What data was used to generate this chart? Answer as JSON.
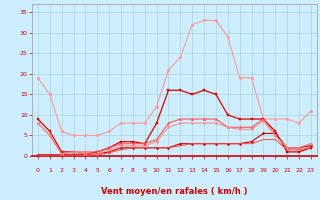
{
  "background_color": "#cceeff",
  "grid_line_color": "#aacccc",
  "xlabel": "Vent moyen/en rafales ( km/h )",
  "xlabel_color": "#cc0000",
  "xlabel_fontsize": 6.0,
  "xtick_color": "#cc0000",
  "ytick_color": "#cc0000",
  "x": [
    0,
    1,
    2,
    3,
    4,
    5,
    6,
    7,
    8,
    9,
    10,
    11,
    12,
    13,
    14,
    15,
    16,
    17,
    18,
    19,
    20,
    21,
    22,
    23
  ],
  "ylim": [
    0,
    37
  ],
  "xlim": [
    -0.5,
    23.5
  ],
  "yticks": [
    0,
    5,
    10,
    15,
    20,
    25,
    30,
    35
  ],
  "series": [
    {
      "y": [
        19,
        15,
        6,
        5,
        5,
        5,
        6,
        8,
        8,
        8,
        12,
        21,
        24,
        32,
        33,
        33,
        29,
        19,
        19,
        9,
        9,
        9,
        8,
        11
      ],
      "color": "#ff9999",
      "lw": 0.8,
      "marker": "o",
      "ms": 1.8
    },
    {
      "y": [
        9,
        6,
        1,
        1,
        0.5,
        1,
        2,
        3.5,
        3.5,
        3,
        8,
        16,
        16,
        15,
        16,
        15,
        10,
        9,
        9,
        9,
        6,
        1,
        1,
        2
      ],
      "color": "#dd0000",
      "lw": 0.9,
      "marker": "s",
      "ms": 1.8
    },
    {
      "y": [
        8,
        5,
        0.5,
        1,
        1,
        1,
        2,
        3,
        3,
        3,
        4,
        8,
        9,
        9,
        9,
        9,
        7,
        7,
        7,
        9,
        5,
        2,
        2,
        3
      ],
      "color": "#ff5555",
      "lw": 0.8,
      "marker": "^",
      "ms": 1.6
    },
    {
      "y": [
        0.3,
        0.3,
        0.3,
        0.3,
        0.3,
        0.5,
        1,
        2,
        2,
        2,
        2,
        2,
        3,
        3,
        3,
        3,
        3,
        3,
        3.5,
        5.5,
        5.5,
        2,
        2,
        2.5
      ],
      "color": "#cc0000",
      "lw": 0.8,
      "marker": "D",
      "ms": 1.4
    },
    {
      "y": [
        0.1,
        0.1,
        0.1,
        0.1,
        0.1,
        0.3,
        0.8,
        1.5,
        2,
        2,
        2,
        2,
        2.5,
        3,
        3,
        3,
        3,
        3,
        3,
        4,
        4,
        1.5,
        1.5,
        2
      ],
      "color": "#ff4444",
      "lw": 0.7,
      "marker": null,
      "ms": 0
    },
    {
      "y": [
        8,
        5,
        0.5,
        1,
        0.5,
        0.5,
        1.5,
        2.5,
        2.5,
        2.5,
        3.5,
        7,
        8,
        8,
        8,
        8,
        7,
        6.5,
        6.5,
        8.5,
        5,
        2,
        2,
        3
      ],
      "color": "#ff8888",
      "lw": 0.7,
      "marker": "o",
      "ms": 1.4
    }
  ],
  "wind_arrows": [
    "→",
    "↗",
    "↗",
    "↗",
    "↗",
    "↗",
    "↗",
    "←",
    "←",
    "↘",
    "→",
    "↗",
    "→",
    "↘",
    "→",
    "↙",
    "↑",
    "↗",
    "→",
    "↑",
    "↑",
    "↑",
    "↑",
    "←"
  ],
  "arrow_color": "#cc0000",
  "arrow_fontsize": 4.0,
  "bottom_line_color": "#cc0000",
  "spine_color": "#999999"
}
